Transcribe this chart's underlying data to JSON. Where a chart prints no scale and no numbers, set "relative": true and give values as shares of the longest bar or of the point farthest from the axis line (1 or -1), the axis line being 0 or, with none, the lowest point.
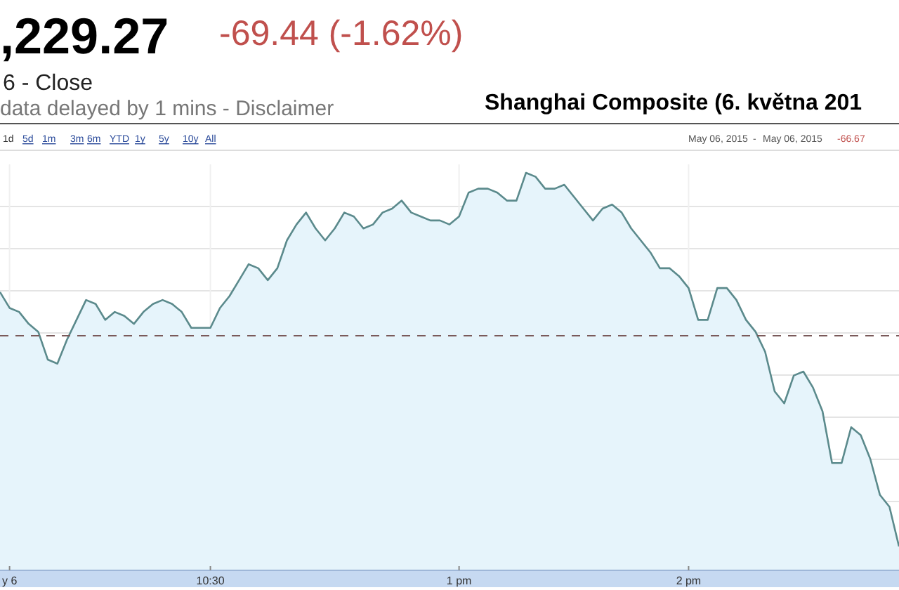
{
  "chart_data": {
    "type": "area",
    "title": "Shanghai Composite (6. května 201",
    "relative": true,
    "annotations": [
      ",229.27",
      "-69.44 (-1.62%)",
      "6 - Close",
      "data delayed by 1 mins - Disclaimer",
      "1d",
      "5d",
      "1m",
      "3m",
      "6m",
      "YTD",
      "1y",
      "5y",
      "10y",
      "All",
      "May 06, 2015",
      "-",
      "May 06, 2015",
      "-66.67"
    ],
    "categories": [
      null,
      "y 6",
      null,
      null,
      null,
      null,
      null,
      null,
      null,
      null,
      null,
      null,
      null,
      null,
      null,
      null,
      null,
      null,
      null,
      null,
      null,
      null,
      "10:30",
      null,
      null,
      null,
      null,
      null,
      null,
      null,
      null,
      null,
      null,
      null,
      null,
      null,
      null,
      null,
      null,
      null,
      null,
      null,
      null,
      null,
      null,
      null,
      null,
      null,
      "1 pm",
      null,
      null,
      null,
      null,
      null,
      null,
      null,
      null,
      null,
      null,
      null,
      null,
      null,
      null,
      null,
      null,
      null,
      null,
      null,
      null,
      null,
      null,
      null,
      "2 pm",
      null,
      null,
      null,
      null,
      null,
      null,
      null,
      null,
      null,
      null,
      null,
      null,
      null,
      null,
      null,
      null,
      null,
      null,
      null,
      null,
      null,
      null
    ],
    "grid": true,
    "ref_lines": [
      {
        "axis": "y",
        "value": 0.59,
        "color": "#7a5a5a",
        "line_style": "dashed"
      }
    ],
    "series": [
      {
        "color": "#5b8a8c",
        "values": [
          0.7,
          0.66,
          0.65,
          0.62,
          0.6,
          0.53,
          0.52,
          0.58,
          0.63,
          0.68,
          0.67,
          0.63,
          0.65,
          0.64,
          0.62,
          0.65,
          0.67,
          0.68,
          0.67,
          0.65,
          0.61,
          0.61,
          0.61,
          0.66,
          0.69,
          0.73,
          0.77,
          0.76,
          0.73,
          0.76,
          0.83,
          0.87,
          0.9,
          0.86,
          0.83,
          0.86,
          0.9,
          0.89,
          0.86,
          0.87,
          0.9,
          0.91,
          0.93,
          0.9,
          0.89,
          0.88,
          0.88,
          0.87,
          0.89,
          0.95,
          0.96,
          0.96,
          0.95,
          0.93,
          0.93,
          1,
          0.99,
          0.96,
          0.96,
          0.97,
          0.94,
          0.91,
          0.88,
          0.91,
          0.92,
          0.9,
          0.86,
          0.83,
          0.8,
          0.76,
          0.76,
          0.74,
          0.71,
          0.63,
          0.63,
          0.71,
          0.71,
          0.68,
          0.63,
          0.6,
          0.55,
          0.45,
          0.42,
          0.49,
          0.5,
          0.46,
          0.4,
          0.27,
          0.27,
          0.36,
          0.34,
          0.28,
          0.19,
          0.16,
          0.06
        ]
      }
    ]
  }
}
